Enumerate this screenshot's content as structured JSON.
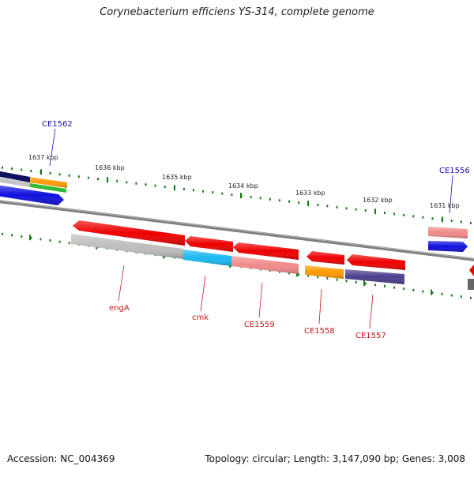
{
  "title": "Corynebacterium efficiens YS-314, complete genome",
  "footer": {
    "accession": "Accession: NC_004369",
    "summary": "Topology: circular; Length: 3,147,090 bp; Genes: 3,008"
  },
  "colors": {
    "backbone": "#8a8a8a",
    "tick": "#1a7a1a",
    "label_red": "#cc1111",
    "label_blue": "#1111aa",
    "gene_red": "#ee0000",
    "gene_gray": "#bdbdbd",
    "gene_cyan": "#19b8f0",
    "gene_pink": "#f08a8a",
    "gene_orange": "#ff9900",
    "gene_purple": "#4a3f8c",
    "gene_blue": "#1010dd",
    "gene_green": "#33bb33",
    "gene_navy": "#101060"
  },
  "ticks": [
    {
      "label": "1637 kbp"
    },
    {
      "label": "1636 kbp"
    },
    {
      "label": "1635 kbp"
    },
    {
      "label": "1634 kbp"
    },
    {
      "label": "1633 kbp"
    },
    {
      "label": "1632 kbp"
    },
    {
      "label": "1631 kbp"
    }
  ],
  "genes": [
    {
      "name": "engA",
      "color": "red"
    },
    {
      "name": "cmk",
      "color": "red"
    },
    {
      "name": "CE1559",
      "color": "red"
    },
    {
      "name": "CE1558",
      "color": "red"
    },
    {
      "name": "CE1557",
      "color": "red"
    },
    {
      "name": "CE1562",
      "color": "blue"
    },
    {
      "name": "CE1556",
      "color": "blue"
    }
  ]
}
